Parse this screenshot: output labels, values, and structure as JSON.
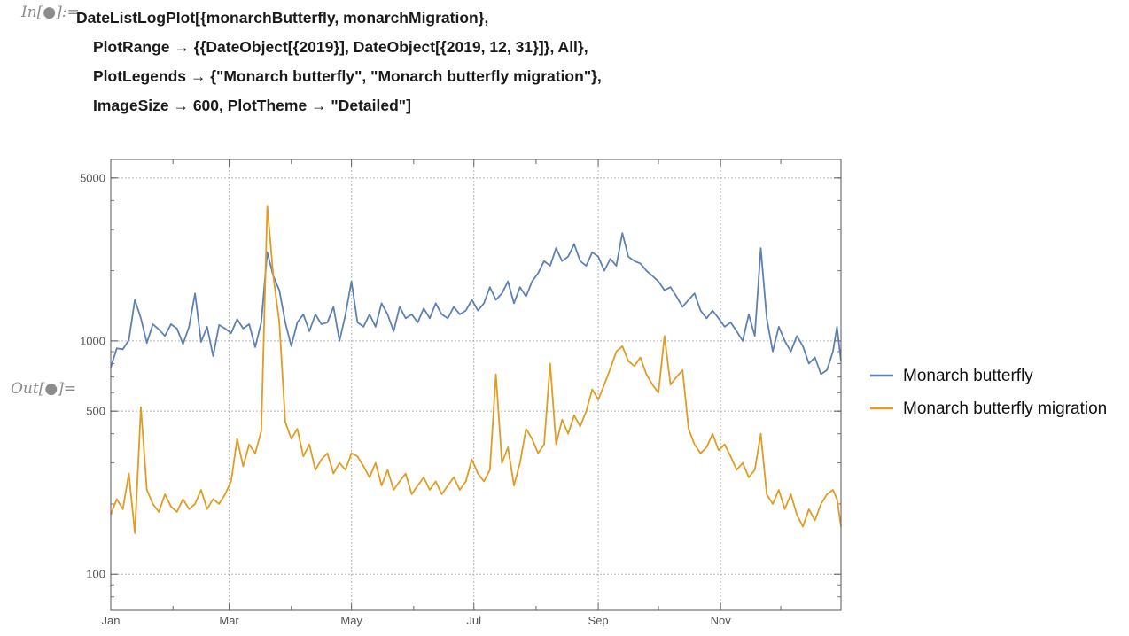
{
  "notebook": {
    "in_label": "In[●]:=",
    "out_label": "Out[●]=",
    "code_lines": [
      "DateListLogPlot[{monarchButterfly, monarchMigration},",
      "PlotRange → {{DateObject[{2019}], DateObject[{2019, 12, 31}]}, All},",
      "PlotLegends → {\"Monarch butterfly\", \"Monarch butterfly migration\"},",
      "ImageSize → 600, PlotTheme → \"Detailed\"]"
    ]
  },
  "chart_data": {
    "type": "line",
    "title": "",
    "xlabel": "",
    "ylabel": "",
    "y_scale": "log",
    "ylim": [
      70,
      6000
    ],
    "xlim": [
      "2019-01-01",
      "2019-12-31"
    ],
    "grid": true,
    "legend_placement": "right",
    "x_ticks": [
      {
        "date": "2019-01-01",
        "label": "Jan"
      },
      {
        "date": "2019-03-01",
        "label": "Mar"
      },
      {
        "date": "2019-05-01",
        "label": "May"
      },
      {
        "date": "2019-07-01",
        "label": "Jul"
      },
      {
        "date": "2019-09-01",
        "label": "Sep"
      },
      {
        "date": "2019-11-01",
        "label": "Nov"
      }
    ],
    "y_ticks": [
      {
        "value": 100,
        "label": "100"
      },
      {
        "value": 500,
        "label": "500"
      },
      {
        "value": 1000,
        "label": "1000"
      },
      {
        "value": 5000,
        "label": "5000"
      }
    ],
    "series": [
      {
        "name": "Monarch butterfly",
        "color": "#5e81b5",
        "points": [
          [
            "2019-01-01",
            770
          ],
          [
            "2019-01-04",
            930
          ],
          [
            "2019-01-07",
            920
          ],
          [
            "2019-01-10",
            1010
          ],
          [
            "2019-01-13",
            1500
          ],
          [
            "2019-01-16",
            1250
          ],
          [
            "2019-01-19",
            980
          ],
          [
            "2019-01-22",
            1180
          ],
          [
            "2019-01-25",
            1120
          ],
          [
            "2019-01-28",
            1050
          ],
          [
            "2019-01-31",
            1180
          ],
          [
            "2019-02-03",
            1130
          ],
          [
            "2019-02-06",
            970
          ],
          [
            "2019-02-09",
            1150
          ],
          [
            "2019-02-12",
            1600
          ],
          [
            "2019-02-15",
            990
          ],
          [
            "2019-02-18",
            1150
          ],
          [
            "2019-02-21",
            860
          ],
          [
            "2019-02-24",
            1170
          ],
          [
            "2019-02-27",
            1130
          ],
          [
            "2019-03-02",
            1080
          ],
          [
            "2019-03-05",
            1240
          ],
          [
            "2019-03-08",
            1130
          ],
          [
            "2019-03-11",
            1180
          ],
          [
            "2019-03-14",
            940
          ],
          [
            "2019-03-17",
            1200
          ],
          [
            "2019-03-20",
            2400
          ],
          [
            "2019-03-23",
            1900
          ],
          [
            "2019-03-26",
            1650
          ],
          [
            "2019-03-29",
            1200
          ],
          [
            "2019-04-01",
            950
          ],
          [
            "2019-04-04",
            1200
          ],
          [
            "2019-04-07",
            1300
          ],
          [
            "2019-04-10",
            1100
          ],
          [
            "2019-04-13",
            1300
          ],
          [
            "2019-04-16",
            1180
          ],
          [
            "2019-04-19",
            1200
          ],
          [
            "2019-04-22",
            1400
          ],
          [
            "2019-04-25",
            1000
          ],
          [
            "2019-04-28",
            1300
          ],
          [
            "2019-05-01",
            1800
          ],
          [
            "2019-05-04",
            1200
          ],
          [
            "2019-05-07",
            1150
          ],
          [
            "2019-05-10",
            1300
          ],
          [
            "2019-05-13",
            1150
          ],
          [
            "2019-05-16",
            1450
          ],
          [
            "2019-05-19",
            1300
          ],
          [
            "2019-05-22",
            1100
          ],
          [
            "2019-05-25",
            1400
          ],
          [
            "2019-05-28",
            1250
          ],
          [
            "2019-05-31",
            1300
          ],
          [
            "2019-06-03",
            1200
          ],
          [
            "2019-06-06",
            1380
          ],
          [
            "2019-06-09",
            1250
          ],
          [
            "2019-06-12",
            1450
          ],
          [
            "2019-06-15",
            1300
          ],
          [
            "2019-06-18",
            1250
          ],
          [
            "2019-06-21",
            1400
          ],
          [
            "2019-06-24",
            1300
          ],
          [
            "2019-06-27",
            1350
          ],
          [
            "2019-06-30",
            1500
          ],
          [
            "2019-07-03",
            1350
          ],
          [
            "2019-07-06",
            1450
          ],
          [
            "2019-07-09",
            1700
          ],
          [
            "2019-07-12",
            1500
          ],
          [
            "2019-07-15",
            1600
          ],
          [
            "2019-07-18",
            1800
          ],
          [
            "2019-07-21",
            1450
          ],
          [
            "2019-07-24",
            1700
          ],
          [
            "2019-07-27",
            1550
          ],
          [
            "2019-07-30",
            1800
          ],
          [
            "2019-08-02",
            1950
          ],
          [
            "2019-08-05",
            2200
          ],
          [
            "2019-08-08",
            2100
          ],
          [
            "2019-08-11",
            2500
          ],
          [
            "2019-08-14",
            2200
          ],
          [
            "2019-08-17",
            2300
          ],
          [
            "2019-08-20",
            2600
          ],
          [
            "2019-08-23",
            2200
          ],
          [
            "2019-08-26",
            2100
          ],
          [
            "2019-08-29",
            2400
          ],
          [
            "2019-09-01",
            2300
          ],
          [
            "2019-09-04",
            2000
          ],
          [
            "2019-09-07",
            2250
          ],
          [
            "2019-09-10",
            2100
          ],
          [
            "2019-09-13",
            2900
          ],
          [
            "2019-09-16",
            2300
          ],
          [
            "2019-09-19",
            2200
          ],
          [
            "2019-09-22",
            2150
          ],
          [
            "2019-09-25",
            2000
          ],
          [
            "2019-09-28",
            1900
          ],
          [
            "2019-10-01",
            1800
          ],
          [
            "2019-10-04",
            1650
          ],
          [
            "2019-10-07",
            1700
          ],
          [
            "2019-10-10",
            1550
          ],
          [
            "2019-10-13",
            1400
          ],
          [
            "2019-10-16",
            1500
          ],
          [
            "2019-10-19",
            1600
          ],
          [
            "2019-10-22",
            1350
          ],
          [
            "2019-10-25",
            1250
          ],
          [
            "2019-10-28",
            1350
          ],
          [
            "2019-10-31",
            1250
          ],
          [
            "2019-11-03",
            1150
          ],
          [
            "2019-11-06",
            1200
          ],
          [
            "2019-11-09",
            1100
          ],
          [
            "2019-11-12",
            1000
          ],
          [
            "2019-11-15",
            1300
          ],
          [
            "2019-11-18",
            1050
          ],
          [
            "2019-11-21",
            2500
          ],
          [
            "2019-11-24",
            1250
          ],
          [
            "2019-11-27",
            900
          ],
          [
            "2019-11-30",
            1150
          ],
          [
            "2019-12-03",
            1000
          ],
          [
            "2019-12-06",
            900
          ],
          [
            "2019-12-09",
            1050
          ],
          [
            "2019-12-12",
            950
          ],
          [
            "2019-12-15",
            800
          ],
          [
            "2019-12-18",
            850
          ],
          [
            "2019-12-21",
            720
          ],
          [
            "2019-12-24",
            750
          ],
          [
            "2019-12-27",
            900
          ],
          [
            "2019-12-29",
            1150
          ],
          [
            "2019-12-31",
            820
          ]
        ]
      },
      {
        "name": "Monarch butterfly migration",
        "color": "#e19c24",
        "points": [
          [
            "2019-01-01",
            180
          ],
          [
            "2019-01-04",
            210
          ],
          [
            "2019-01-07",
            190
          ],
          [
            "2019-01-10",
            270
          ],
          [
            "2019-01-13",
            150
          ],
          [
            "2019-01-16",
            520
          ],
          [
            "2019-01-19",
            230
          ],
          [
            "2019-01-22",
            200
          ],
          [
            "2019-01-25",
            185
          ],
          [
            "2019-01-28",
            220
          ],
          [
            "2019-01-31",
            195
          ],
          [
            "2019-02-03",
            185
          ],
          [
            "2019-02-06",
            210
          ],
          [
            "2019-02-09",
            190
          ],
          [
            "2019-02-12",
            200
          ],
          [
            "2019-02-15",
            230
          ],
          [
            "2019-02-18",
            190
          ],
          [
            "2019-02-21",
            210
          ],
          [
            "2019-02-24",
            200
          ],
          [
            "2019-02-27",
            220
          ],
          [
            "2019-03-02",
            250
          ],
          [
            "2019-03-05",
            380
          ],
          [
            "2019-03-08",
            290
          ],
          [
            "2019-03-11",
            360
          ],
          [
            "2019-03-14",
            330
          ],
          [
            "2019-03-17",
            410
          ],
          [
            "2019-03-20",
            3800
          ],
          [
            "2019-03-23",
            1900
          ],
          [
            "2019-03-26",
            1200
          ],
          [
            "2019-03-29",
            450
          ],
          [
            "2019-04-01",
            380
          ],
          [
            "2019-04-04",
            420
          ],
          [
            "2019-04-07",
            320
          ],
          [
            "2019-04-10",
            360
          ],
          [
            "2019-04-13",
            280
          ],
          [
            "2019-04-16",
            310
          ],
          [
            "2019-04-19",
            330
          ],
          [
            "2019-04-22",
            270
          ],
          [
            "2019-04-25",
            300
          ],
          [
            "2019-04-28",
            280
          ],
          [
            "2019-05-01",
            330
          ],
          [
            "2019-05-04",
            320
          ],
          [
            "2019-05-07",
            290
          ],
          [
            "2019-05-10",
            260
          ],
          [
            "2019-05-13",
            300
          ],
          [
            "2019-05-16",
            240
          ],
          [
            "2019-05-19",
            280
          ],
          [
            "2019-05-22",
            230
          ],
          [
            "2019-05-25",
            250
          ],
          [
            "2019-05-28",
            270
          ],
          [
            "2019-05-31",
            220
          ],
          [
            "2019-06-03",
            240
          ],
          [
            "2019-06-06",
            260
          ],
          [
            "2019-06-09",
            230
          ],
          [
            "2019-06-12",
            250
          ],
          [
            "2019-06-15",
            220
          ],
          [
            "2019-06-18",
            240
          ],
          [
            "2019-06-21",
            260
          ],
          [
            "2019-06-24",
            230
          ],
          [
            "2019-06-27",
            250
          ],
          [
            "2019-06-30",
            310
          ],
          [
            "2019-07-03",
            270
          ],
          [
            "2019-07-06",
            250
          ],
          [
            "2019-07-09",
            280
          ],
          [
            "2019-07-12",
            720
          ],
          [
            "2019-07-15",
            300
          ],
          [
            "2019-07-18",
            350
          ],
          [
            "2019-07-21",
            240
          ],
          [
            "2019-07-24",
            300
          ],
          [
            "2019-07-27",
            420
          ],
          [
            "2019-07-30",
            380
          ],
          [
            "2019-08-02",
            330
          ],
          [
            "2019-08-05",
            360
          ],
          [
            "2019-08-08",
            800
          ],
          [
            "2019-08-11",
            360
          ],
          [
            "2019-08-14",
            460
          ],
          [
            "2019-08-17",
            400
          ],
          [
            "2019-08-20",
            480
          ],
          [
            "2019-08-23",
            430
          ],
          [
            "2019-08-26",
            500
          ],
          [
            "2019-08-29",
            620
          ],
          [
            "2019-09-01",
            560
          ],
          [
            "2019-09-04",
            650
          ],
          [
            "2019-09-07",
            760
          ],
          [
            "2019-09-10",
            900
          ],
          [
            "2019-09-13",
            950
          ],
          [
            "2019-09-16",
            820
          ],
          [
            "2019-09-19",
            780
          ],
          [
            "2019-09-22",
            850
          ],
          [
            "2019-09-25",
            720
          ],
          [
            "2019-09-28",
            650
          ],
          [
            "2019-10-01",
            600
          ],
          [
            "2019-10-04",
            1050
          ],
          [
            "2019-10-07",
            650
          ],
          [
            "2019-10-10",
            700
          ],
          [
            "2019-10-13",
            750
          ],
          [
            "2019-10-16",
            420
          ],
          [
            "2019-10-19",
            360
          ],
          [
            "2019-10-22",
            330
          ],
          [
            "2019-10-25",
            350
          ],
          [
            "2019-10-28",
            400
          ],
          [
            "2019-10-31",
            340
          ],
          [
            "2019-11-03",
            360
          ],
          [
            "2019-11-06",
            320
          ],
          [
            "2019-11-09",
            280
          ],
          [
            "2019-11-12",
            300
          ],
          [
            "2019-11-15",
            260
          ],
          [
            "2019-11-18",
            280
          ],
          [
            "2019-11-21",
            400
          ],
          [
            "2019-11-24",
            220
          ],
          [
            "2019-11-27",
            200
          ],
          [
            "2019-11-30",
            230
          ],
          [
            "2019-12-03",
            190
          ],
          [
            "2019-12-06",
            220
          ],
          [
            "2019-12-09",
            180
          ],
          [
            "2019-12-12",
            160
          ],
          [
            "2019-12-15",
            190
          ],
          [
            "2019-12-18",
            170
          ],
          [
            "2019-12-21",
            200
          ],
          [
            "2019-12-24",
            220
          ],
          [
            "2019-12-27",
            230
          ],
          [
            "2019-12-29",
            210
          ],
          [
            "2019-12-31",
            160
          ]
        ]
      }
    ]
  }
}
